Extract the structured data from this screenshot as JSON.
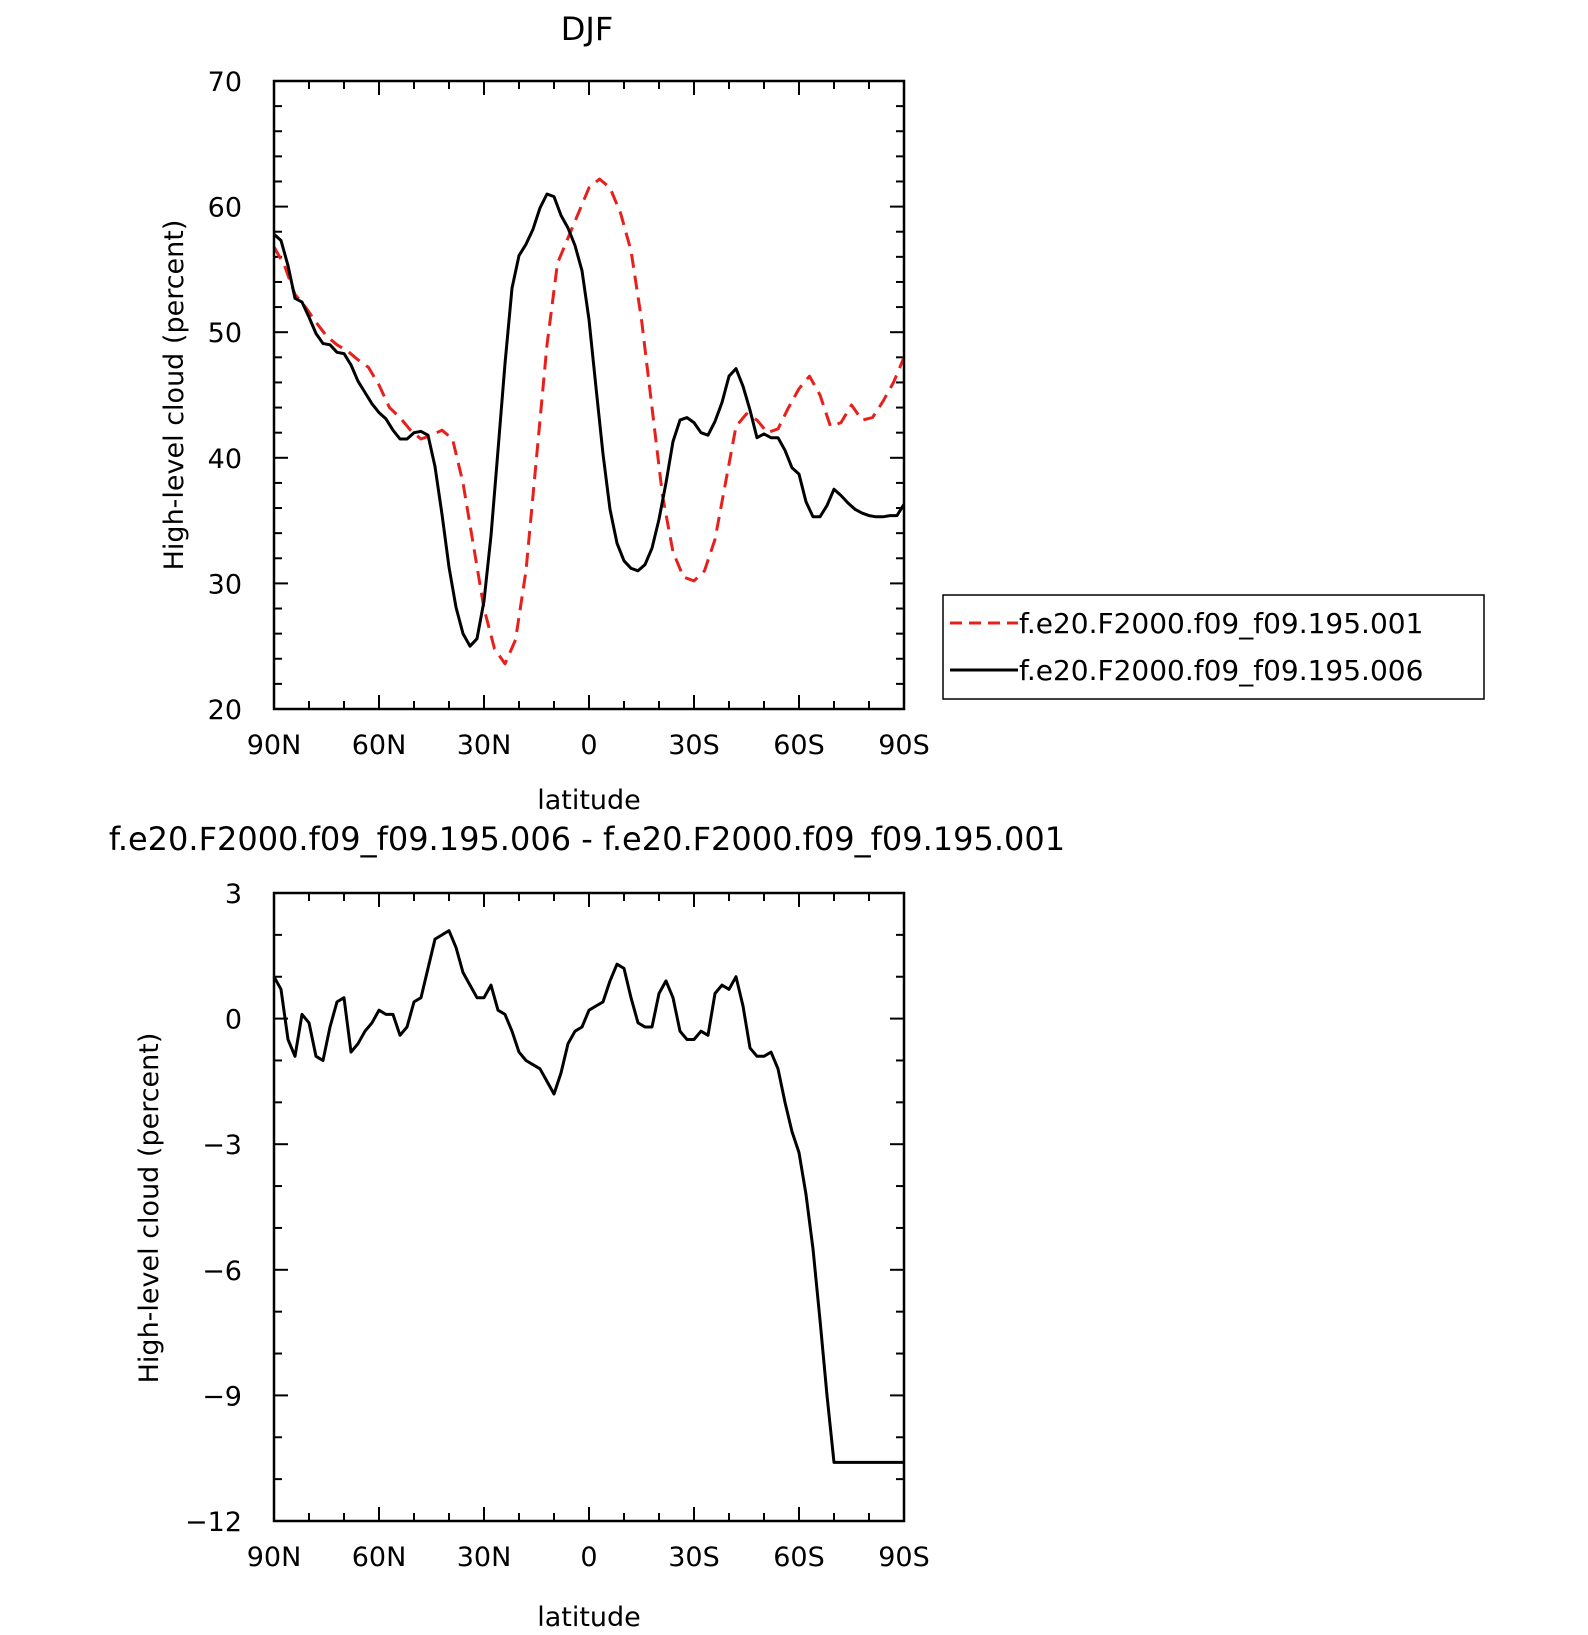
{
  "chart_data": [
    {
      "type": "line",
      "title": "DJF",
      "xlabel": "latitude",
      "ylabel": "High-level cloud (percent)",
      "xlim": [
        90,
        -90
      ],
      "ylim": [
        20,
        70
      ],
      "xticks": [
        90,
        60,
        30,
        0,
        -30,
        -60,
        -90
      ],
      "xticklabels": [
        "90N",
        "60N",
        "30N",
        "0",
        "30S",
        "60S",
        "90S"
      ],
      "yticks": [
        20,
        30,
        40,
        50,
        60,
        70
      ],
      "yticklabels": [
        "20",
        "30",
        "40",
        "50",
        "60",
        "70"
      ],
      "legend_position": "right",
      "series": [
        {
          "name": "f.e20.F2000.f09_f09.195.001",
          "color": "#e8201c",
          "dash": "dashed",
          "x": [
            90,
            87,
            84,
            81,
            78,
            75,
            72,
            69,
            66,
            63,
            60,
            57,
            54,
            51,
            48,
            45,
            42,
            39,
            36,
            33,
            30,
            27,
            24,
            21,
            18,
            15,
            12,
            9,
            6,
            3,
            0,
            -3,
            -6,
            -9,
            -12,
            -15,
            -18,
            -21,
            -24,
            -27,
            -30,
            -33,
            -36,
            -39,
            -42,
            -45,
            -48,
            -51,
            -54,
            -57,
            -60,
            -63,
            -66,
            -69,
            -72,
            -75,
            -78,
            -81,
            -84,
            -87,
            -90
          ],
          "y": [
            56.8,
            55.3,
            53.0,
            52.0,
            50.8,
            49.7,
            49.0,
            48.5,
            47.8,
            47.2,
            45.8,
            44.0,
            43.2,
            42.2,
            41.5,
            41.8,
            42.2,
            41.5,
            38.0,
            33.0,
            28.0,
            24.8,
            23.6,
            25.5,
            31.0,
            40.0,
            49.0,
            55.5,
            57.5,
            59.5,
            61.5,
            62.2,
            61.5,
            59.5,
            56.5,
            51.0,
            44.0,
            37.0,
            32.5,
            30.5,
            30.2,
            31.0,
            33.5,
            38.0,
            42.5,
            43.5,
            43.0,
            42.0,
            42.3,
            44.0,
            45.5,
            46.5,
            45.0,
            42.5,
            42.8,
            44.2,
            43.0,
            43.2,
            44.5,
            46.0,
            48.0
          ]
        },
        {
          "name": "f.e20.F2000.f09_f09.195.006",
          "color": "#000000",
          "dash": "solid",
          "x": [
            90,
            88,
            86,
            84,
            82,
            80,
            78,
            76,
            74,
            72,
            70,
            68,
            66,
            64,
            62,
            60,
            58,
            56,
            54,
            52,
            50,
            48,
            46,
            44,
            42,
            40,
            38,
            36,
            34,
            32,
            30,
            28,
            26,
            24,
            22,
            20,
            18,
            16,
            14,
            12,
            10,
            8,
            6,
            4,
            2,
            0,
            -2,
            -4,
            -6,
            -8,
            -10,
            -12,
            -14,
            -16,
            -18,
            -20,
            -22,
            -24,
            -26,
            -28,
            -30,
            -32,
            -34,
            -36,
            -38,
            -40,
            -42,
            -44,
            -46,
            -48,
            -50,
            -52,
            -54,
            -56,
            -58,
            -60,
            -62,
            -64,
            -66,
            -68,
            -70,
            -72,
            -74,
            -76,
            -78,
            -80,
            -82,
            -84,
            -86,
            -88,
            -90
          ],
          "y": [
            57.8,
            57.3,
            55.3,
            52.7,
            52.4,
            51.2,
            49.9,
            49.1,
            49.0,
            48.4,
            48.3,
            47.4,
            46.1,
            45.2,
            44.3,
            43.6,
            43.1,
            42.2,
            41.5,
            41.5,
            42.0,
            42.1,
            41.8,
            39.3,
            35.5,
            31.3,
            28.1,
            26.0,
            25.0,
            25.6,
            28.6,
            33.8,
            40.6,
            47.5,
            53.5,
            56.1,
            57.0,
            58.2,
            59.9,
            61.0,
            60.8,
            59.3,
            58.3,
            56.9,
            54.9,
            51.0,
            45.6,
            40.3,
            35.9,
            33.2,
            31.8,
            31.2,
            31.0,
            31.5,
            32.8,
            35.1,
            38.0,
            41.3,
            43.0,
            43.2,
            42.8,
            42.0,
            41.8,
            42.9,
            44.4,
            46.5,
            47.1,
            45.7,
            43.8,
            41.6,
            41.9,
            41.6,
            41.6,
            40.6,
            39.2,
            38.7,
            36.5,
            35.3,
            35.3,
            36.2,
            37.5,
            37.0,
            36.4,
            35.9,
            35.6,
            35.4,
            35.3,
            35.3,
            35.4,
            35.4,
            36.3
          ]
        }
      ]
    },
    {
      "type": "line",
      "title": "f.e20.F2000.f09_f09.195.006 - f.e20.F2000.f09_f09.195.001",
      "xlabel": "latitude",
      "ylabel": "High-level cloud (percent)",
      "xlim": [
        90,
        -90
      ],
      "ylim": [
        -12,
        3
      ],
      "xticks": [
        90,
        60,
        30,
        0,
        -30,
        -60,
        -90
      ],
      "xticklabels": [
        "90N",
        "60N",
        "30N",
        "0",
        "30S",
        "60S",
        "90S"
      ],
      "yticks": [
        3,
        0,
        -3,
        -6,
        -9,
        -12
      ],
      "yticklabels": [
        "3",
        "0",
        "−3",
        "−6",
        "−9",
        "−12"
      ],
      "series": [
        {
          "color": "#000000",
          "dash": "solid",
          "x": [
            90,
            88,
            86,
            84,
            82,
            80,
            78,
            76,
            74,
            72,
            70,
            68,
            66,
            64,
            62,
            60,
            58,
            56,
            54,
            52,
            50,
            48,
            46,
            44,
            42,
            40,
            38,
            36,
            34,
            32,
            30,
            28,
            26,
            24,
            22,
            20,
            18,
            16,
            14,
            12,
            10,
            8,
            6,
            4,
            2,
            0,
            -2,
            -4,
            -6,
            -8,
            -10,
            -12,
            -14,
            -16,
            -18,
            -20,
            -22,
            -24,
            -26,
            -28,
            -30,
            -32,
            -34,
            -36,
            -38,
            -40,
            -42,
            -44,
            -46,
            -48,
            -50,
            -52,
            -54,
            -56,
            -58,
            -60,
            -62,
            -64,
            -66,
            -68,
            -70,
            -72,
            -74,
            -76,
            -78,
            -80,
            -82,
            -84,
            -86,
            -88,
            -90
          ],
          "y": [
            1.0,
            0.7,
            -0.5,
            -0.9,
            0.1,
            -0.1,
            -0.9,
            -1.0,
            -0.2,
            0.4,
            0.5,
            -0.8,
            -0.6,
            -0.3,
            -0.1,
            0.2,
            0.1,
            0.1,
            -0.4,
            -0.2,
            0.4,
            0.5,
            1.2,
            1.9,
            2.0,
            2.1,
            1.7,
            1.1,
            0.8,
            0.5,
            0.5,
            0.8,
            0.2,
            0.1,
            -0.3,
            -0.8,
            -1.0,
            -1.1,
            -1.2,
            -1.5,
            -1.8,
            -1.3,
            -0.6,
            -0.3,
            -0.2,
            0.2,
            0.3,
            0.4,
            0.9,
            1.3,
            1.2,
            0.5,
            -0.1,
            -0.2,
            -0.2,
            0.6,
            0.9,
            0.5,
            -0.3,
            -0.5,
            -0.5,
            -0.3,
            -0.4,
            0.6,
            0.8,
            0.7,
            1.0,
            0.3,
            -0.7,
            -0.9,
            -0.9,
            -0.8,
            -1.2,
            -2.0,
            -2.7,
            -3.2,
            -4.2,
            -5.5,
            -7.2,
            -9.0,
            -10.6,
            -10.6,
            -10.6,
            -10.6,
            -10.6,
            -10.6,
            -10.6,
            -10.6,
            -10.6,
            -10.6,
            -10.6
          ]
        }
      ]
    }
  ]
}
